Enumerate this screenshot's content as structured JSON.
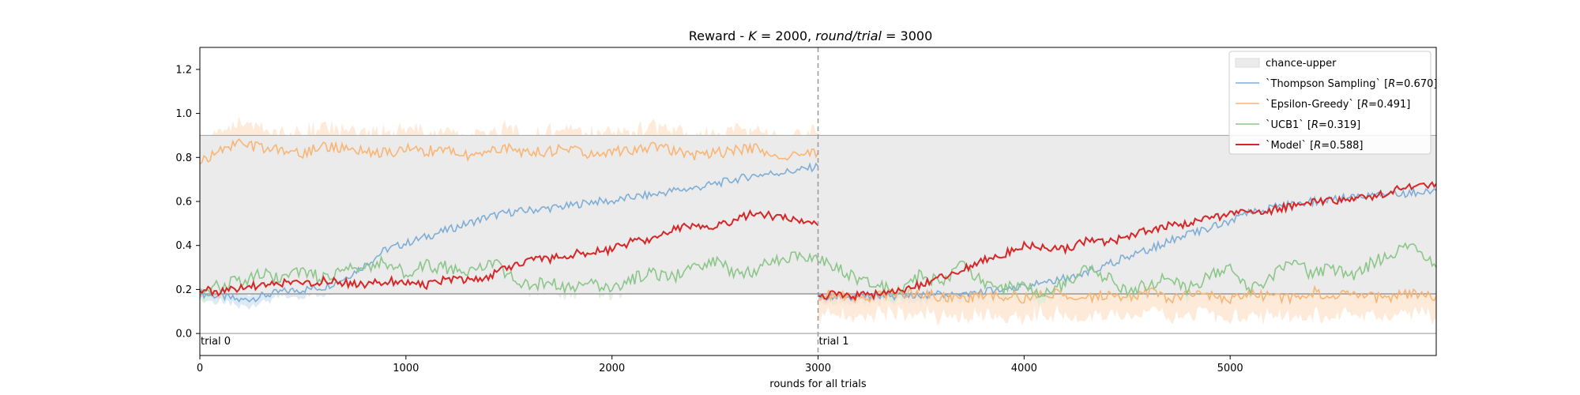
{
  "chart_data": {
    "type": "line",
    "title": "Reward - K = 2000, round/trial = 3000",
    "title_parts": {
      "prefix": "Reward - ",
      "k_symbol": "K",
      "k_value": " = 2000, ",
      "rt_symbol": "round/trial",
      "rt_value": " = 3000"
    },
    "xlabel": "rounds for all trials",
    "ylabel": "",
    "xlim": [
      0,
      6000
    ],
    "ylim": [
      -0.1,
      1.3
    ],
    "xticks": [
      0,
      1000,
      2000,
      3000,
      4000,
      5000
    ],
    "xtick_labels": [
      "0",
      "1000",
      "2000",
      "3000",
      "4000",
      "5000"
    ],
    "yticks": [
      0.0,
      0.2,
      0.4,
      0.6,
      0.8,
      1.0,
      1.2
    ],
    "ytick_labels": [
      "0.0",
      "0.2",
      "0.4",
      "0.6",
      "0.8",
      "1.0",
      "1.2"
    ],
    "grid": false,
    "legend_position": "top-right",
    "trial_boundary": 3000,
    "annotations": [
      {
        "text": "trial 0",
        "x": 0
      },
      {
        "text": "trial 1",
        "x": 3000
      }
    ],
    "reference_lines": [
      {
        "y": 0.0,
        "color": "#aaaaaa"
      },
      {
        "y": 0.9,
        "color": "#aaaaaa"
      },
      {
        "y": 0.18,
        "color": "#888888"
      }
    ],
    "chance_band": {
      "name": "chance-upper",
      "color": "#ebebeb",
      "segments": [
        {
          "x": [
            0,
            3000
          ],
          "lower": 0.18,
          "upper": 0.9
        },
        {
          "x": [
            3000,
            6000
          ],
          "lower": 0.18,
          "upper": 0.9
        }
      ]
    },
    "series": [
      {
        "name": "`Thompson Sampling` [R=0.670]",
        "legend_pre": "`Thompson Sampling` [",
        "legend_r": "R",
        "legend_post": "=0.670]",
        "color": "#7eaed6",
        "band_color": "#cfe3f2",
        "x": [
          0,
          100,
          200,
          300,
          400,
          500,
          600,
          700,
          800,
          900,
          1000,
          1100,
          1200,
          1300,
          1400,
          1500,
          1600,
          1700,
          1800,
          1900,
          2000,
          2100,
          2200,
          2300,
          2400,
          2500,
          2600,
          2700,
          2800,
          2900,
          3000,
          3001,
          3100,
          3200,
          3300,
          3400,
          3500,
          3600,
          3700,
          3800,
          3900,
          4000,
          4100,
          4200,
          4300,
          4400,
          4500,
          4600,
          4700,
          4800,
          4900,
          5000,
          5100,
          5200,
          5300,
          5400,
          5500,
          5600,
          5700,
          5800,
          5900,
          6000
        ],
        "values": [
          0.18,
          0.17,
          0.15,
          0.17,
          0.19,
          0.2,
          0.21,
          0.25,
          0.31,
          0.38,
          0.41,
          0.44,
          0.47,
          0.5,
          0.53,
          0.55,
          0.56,
          0.57,
          0.58,
          0.6,
          0.6,
          0.62,
          0.63,
          0.65,
          0.66,
          0.68,
          0.7,
          0.72,
          0.73,
          0.74,
          0.76,
          0.17,
          0.17,
          0.17,
          0.17,
          0.17,
          0.17,
          0.18,
          0.18,
          0.19,
          0.2,
          0.21,
          0.23,
          0.25,
          0.28,
          0.31,
          0.35,
          0.38,
          0.42,
          0.45,
          0.48,
          0.51,
          0.55,
          0.57,
          0.59,
          0.6,
          0.61,
          0.62,
          0.63,
          0.63,
          0.64,
          0.65
        ]
      },
      {
        "name": "`Epsilon-Greedy` [R=0.491]",
        "legend_pre": "`Epsilon-Greedy` [",
        "legend_r": "R",
        "legend_post": "=0.491]",
        "color": "#f9b574",
        "band_color": "#fde3cc",
        "x": [
          0,
          100,
          200,
          300,
          400,
          500,
          600,
          700,
          800,
          900,
          1000,
          1100,
          1200,
          1300,
          1400,
          1500,
          1600,
          1700,
          1800,
          1900,
          2000,
          2100,
          2200,
          2300,
          2400,
          2500,
          2600,
          2700,
          2800,
          2900,
          3000,
          3001,
          3100,
          3200,
          3300,
          3400,
          3500,
          3600,
          3700,
          3800,
          3900,
          4000,
          4100,
          4200,
          4300,
          4400,
          4500,
          4600,
          4700,
          4800,
          4900,
          5000,
          5100,
          5200,
          5300,
          5400,
          5500,
          5600,
          5700,
          5800,
          5900,
          6000
        ],
        "values": [
          0.78,
          0.84,
          0.86,
          0.84,
          0.83,
          0.82,
          0.85,
          0.84,
          0.83,
          0.82,
          0.84,
          0.83,
          0.84,
          0.81,
          0.83,
          0.84,
          0.82,
          0.83,
          0.84,
          0.81,
          0.83,
          0.82,
          0.85,
          0.83,
          0.81,
          0.82,
          0.83,
          0.84,
          0.8,
          0.81,
          0.82,
          0.17,
          0.18,
          0.16,
          0.17,
          0.19,
          0.18,
          0.17,
          0.15,
          0.18,
          0.17,
          0.16,
          0.19,
          0.17,
          0.16,
          0.18,
          0.17,
          0.19,
          0.16,
          0.18,
          0.17,
          0.15,
          0.18,
          0.17,
          0.16,
          0.19,
          0.17,
          0.18,
          0.16,
          0.17,
          0.18,
          0.17
        ]
      },
      {
        "name": "`UCB1` [R=0.319]",
        "legend_pre": "`UCB1` [",
        "legend_r": "R",
        "legend_post": "=0.319]",
        "color": "#8cc68a",
        "band_color": "#d8ecd5",
        "x": [
          0,
          100,
          200,
          300,
          400,
          500,
          600,
          700,
          800,
          900,
          1000,
          1100,
          1200,
          1300,
          1400,
          1500,
          1600,
          1700,
          1800,
          1900,
          2000,
          2100,
          2200,
          2300,
          2400,
          2500,
          2600,
          2700,
          2800,
          2900,
          3000,
          3001,
          3100,
          3200,
          3300,
          3400,
          3500,
          3600,
          3700,
          3800,
          3900,
          4000,
          4100,
          4200,
          4300,
          4400,
          4500,
          4600,
          4700,
          4800,
          4900,
          5000,
          5100,
          5200,
          5300,
          5400,
          5500,
          5600,
          5700,
          5800,
          5900,
          6000
        ],
        "values": [
          0.2,
          0.22,
          0.24,
          0.27,
          0.26,
          0.28,
          0.25,
          0.29,
          0.3,
          0.33,
          0.27,
          0.31,
          0.3,
          0.28,
          0.33,
          0.27,
          0.21,
          0.24,
          0.2,
          0.23,
          0.21,
          0.25,
          0.27,
          0.26,
          0.3,
          0.33,
          0.27,
          0.29,
          0.34,
          0.36,
          0.33,
          0.35,
          0.3,
          0.24,
          0.21,
          0.19,
          0.27,
          0.22,
          0.31,
          0.24,
          0.2,
          0.22,
          0.18,
          0.23,
          0.29,
          0.26,
          0.19,
          0.22,
          0.25,
          0.2,
          0.27,
          0.3,
          0.21,
          0.25,
          0.33,
          0.27,
          0.3,
          0.25,
          0.33,
          0.37,
          0.41,
          0.3
        ]
      },
      {
        "name": "`Model` [R=0.588]",
        "legend_pre": "`Model` [",
        "legend_r": "R",
        "legend_post": "=0.588]",
        "color": "#d62728",
        "band_color": "#f5c6c6",
        "x": [
          0,
          100,
          200,
          300,
          400,
          500,
          600,
          700,
          800,
          900,
          1000,
          1100,
          1200,
          1300,
          1400,
          1500,
          1600,
          1700,
          1800,
          1900,
          2000,
          2100,
          2200,
          2300,
          2400,
          2500,
          2600,
          2700,
          2800,
          2900,
          3000,
          3001,
          3100,
          3200,
          3300,
          3400,
          3500,
          3600,
          3700,
          3800,
          3900,
          4000,
          4100,
          4200,
          4300,
          4400,
          4500,
          4600,
          4700,
          4800,
          4900,
          5000,
          5100,
          5200,
          5300,
          5400,
          5500,
          5600,
          5700,
          5800,
          5900,
          6000
        ],
        "values": [
          0.2,
          0.19,
          0.21,
          0.22,
          0.23,
          0.22,
          0.24,
          0.23,
          0.22,
          0.24,
          0.23,
          0.22,
          0.25,
          0.24,
          0.26,
          0.3,
          0.33,
          0.34,
          0.36,
          0.37,
          0.38,
          0.42,
          0.43,
          0.47,
          0.5,
          0.48,
          0.52,
          0.55,
          0.53,
          0.51,
          0.49,
          0.17,
          0.18,
          0.17,
          0.18,
          0.2,
          0.22,
          0.26,
          0.29,
          0.33,
          0.36,
          0.4,
          0.39,
          0.38,
          0.42,
          0.41,
          0.44,
          0.47,
          0.49,
          0.5,
          0.52,
          0.54,
          0.55,
          0.56,
          0.58,
          0.6,
          0.6,
          0.61,
          0.62,
          0.65,
          0.67,
          0.68
        ]
      }
    ]
  }
}
